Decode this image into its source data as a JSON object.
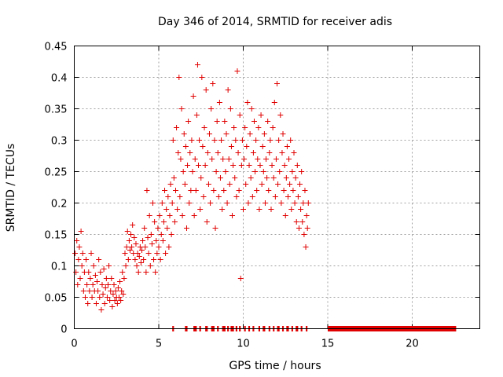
{
  "chart_data": {
    "type": "scatter",
    "title": "Day 346 of 2014, SRMTID for receiver adis",
    "xlabel": "GPS time / hours",
    "ylabel": "SRMTID / TECUs",
    "xlim": [
      0,
      24
    ],
    "ylim": [
      0,
      0.45
    ],
    "x_ticks": [
      0,
      5,
      10,
      15,
      20
    ],
    "x_tick_labels": [
      "0",
      "5",
      "10",
      "15",
      "20"
    ],
    "y_ticks": [
      0,
      0.05,
      0.1,
      0.15,
      0.2,
      0.25,
      0.3,
      0.35,
      0.4,
      0.45
    ],
    "y_tick_labels": [
      "0",
      "0.05",
      "0.1",
      "0.15",
      "0.2",
      "0.25",
      "0.3",
      "0.35",
      "0.4",
      "0.45"
    ],
    "grid": true,
    "marker": "+",
    "series": [
      {
        "name": "SRMTID",
        "color": "#e00000",
        "points": [
          [
            0.05,
            0.12
          ],
          [
            0.1,
            0.09
          ],
          [
            0.15,
            0.14
          ],
          [
            0.2,
            0.07
          ],
          [
            0.25,
            0.11
          ],
          [
            0.3,
            0.13
          ],
          [
            0.35,
            0.08
          ],
          [
            0.4,
            0.155
          ],
          [
            0.45,
            0.1
          ],
          [
            0.5,
            0.12
          ],
          [
            0.55,
            0.06
          ],
          [
            0.6,
            0.09
          ],
          [
            0.65,
            0.05
          ],
          [
            0.7,
            0.11
          ],
          [
            0.75,
            0.07
          ],
          [
            0.8,
            0.04
          ],
          [
            0.85,
            0.09
          ],
          [
            0.9,
            0.06
          ],
          [
            0.95,
            0.08
          ],
          [
            1.0,
            0.12
          ],
          [
            1.05,
            0.05
          ],
          [
            1.1,
            0.07
          ],
          [
            1.15,
            0.1
          ],
          [
            1.2,
            0.06
          ],
          [
            1.25,
            0.085
          ],
          [
            1.3,
            0.04
          ],
          [
            1.35,
            0.075
          ],
          [
            1.4,
            0.06
          ],
          [
            1.45,
            0.11
          ],
          [
            1.5,
            0.05
          ],
          [
            1.55,
            0.09
          ],
          [
            1.6,
            0.03
          ],
          [
            1.65,
            0.07
          ],
          [
            1.7,
            0.055
          ],
          [
            1.75,
            0.095
          ],
          [
            1.8,
            0.04
          ],
          [
            1.85,
            0.065
          ],
          [
            1.9,
            0.08
          ],
          [
            1.95,
            0.05
          ],
          [
            2.0,
            0.07
          ],
          [
            2.05,
            0.1
          ],
          [
            2.1,
            0.045
          ],
          [
            2.15,
            0.06
          ],
          [
            2.2,
            0.08
          ],
          [
            2.25,
            0.035
          ],
          [
            2.3,
            0.055
          ],
          [
            2.35,
            0.07
          ],
          [
            2.4,
            0.045
          ],
          [
            2.45,
            0.06
          ],
          [
            2.5,
            0.05
          ],
          [
            2.55,
            0.04
          ],
          [
            2.6,
            0.065
          ],
          [
            2.65,
            0.05
          ],
          [
            2.7,
            0.075
          ],
          [
            2.75,
            0.045
          ],
          [
            2.8,
            0.06
          ],
          [
            2.85,
            0.09
          ],
          [
            2.9,
            0.055
          ],
          [
            2.95,
            0.08
          ],
          [
            3.0,
            0.12
          ],
          [
            3.05,
            0.1
          ],
          [
            3.1,
            0.13
          ],
          [
            3.15,
            0.155
          ],
          [
            3.2,
            0.11
          ],
          [
            3.25,
            0.14
          ],
          [
            3.3,
            0.125
          ],
          [
            3.35,
            0.15
          ],
          [
            3.4,
            0.13
          ],
          [
            3.45,
            0.165
          ],
          [
            3.5,
            0.12
          ],
          [
            3.55,
            0.145
          ],
          [
            3.6,
            0.11
          ],
          [
            3.65,
            0.135
          ],
          [
            3.7,
            0.1
          ],
          [
            3.75,
            0.12
          ],
          [
            3.8,
            0.09
          ],
          [
            3.85,
            0.115
          ],
          [
            3.9,
            0.13
          ],
          [
            3.95,
            0.105
          ],
          [
            4.0,
            0.125
          ],
          [
            4.05,
            0.14
          ],
          [
            4.1,
            0.11
          ],
          [
            4.15,
            0.16
          ],
          [
            4.2,
            0.13
          ],
          [
            4.25,
            0.09
          ],
          [
            4.3,
            0.22
          ],
          [
            4.35,
            0.145
          ],
          [
            4.4,
            0.12
          ],
          [
            4.45,
            0.18
          ],
          [
            4.5,
            0.1
          ],
          [
            4.55,
            0.15
          ],
          [
            4.6,
            0.135
          ],
          [
            4.65,
            0.2
          ],
          [
            4.7,
            0.11
          ],
          [
            4.75,
            0.17
          ],
          [
            4.8,
            0.09
          ],
          [
            4.85,
            0.14
          ],
          [
            4.9,
            0.12
          ],
          [
            4.95,
            0.16
          ],
          [
            5.0,
            0.13
          ],
          [
            5.05,
            0.18
          ],
          [
            5.1,
            0.11
          ],
          [
            5.15,
            0.15
          ],
          [
            5.2,
            0.2
          ],
          [
            5.25,
            0.14
          ],
          [
            5.3,
            0.17
          ],
          [
            5.35,
            0.22
          ],
          [
            5.4,
            0.12
          ],
          [
            5.45,
            0.19
          ],
          [
            5.5,
            0.16
          ],
          [
            5.55,
            0.21
          ],
          [
            5.6,
            0.13
          ],
          [
            5.65,
            0.18
          ],
          [
            5.7,
            0.23
          ],
          [
            5.75,
            0.15
          ],
          [
            5.8,
            0.2
          ],
          [
            5.85,
            0.3
          ],
          [
            5.9,
            0.24
          ],
          [
            5.95,
            0.17
          ],
          [
            6.0,
            0.22
          ],
          [
            6.05,
            0.32
          ],
          [
            6.1,
            0.19
          ],
          [
            6.15,
            0.28
          ],
          [
            6.2,
            0.4
          ],
          [
            6.25,
            0.21
          ],
          [
            6.3,
            0.27
          ],
          [
            6.35,
            0.35
          ],
          [
            6.4,
            0.18
          ],
          [
            6.45,
            0.25
          ],
          [
            6.5,
            0.31
          ],
          [
            6.55,
            0.23
          ],
          [
            6.6,
            0.29
          ],
          [
            6.65,
            0.16
          ],
          [
            6.7,
            0.26
          ],
          [
            6.75,
            0.33
          ],
          [
            6.8,
            0.2
          ],
          [
            6.85,
            0.28
          ],
          [
            6.9,
            0.22
          ],
          [
            6.95,
            0.3
          ],
          [
            7.0,
            0.25
          ],
          [
            7.05,
            0.37
          ],
          [
            7.1,
            0.18
          ],
          [
            7.15,
            0.27
          ],
          [
            7.2,
            0.22
          ],
          [
            7.25,
            0.34
          ],
          [
            7.3,
            0.42
          ],
          [
            7.35,
            0.26
          ],
          [
            7.4,
            0.3
          ],
          [
            7.45,
            0.19
          ],
          [
            7.5,
            0.24
          ],
          [
            7.55,
            0.4
          ],
          [
            7.6,
            0.29
          ],
          [
            7.65,
            0.21
          ],
          [
            7.7,
            0.32
          ],
          [
            7.75,
            0.26
          ],
          [
            7.8,
            0.38
          ],
          [
            7.85,
            0.17
          ],
          [
            7.9,
            0.28
          ],
          [
            7.95,
            0.23
          ],
          [
            8.0,
            0.31
          ],
          [
            8.05,
            0.2
          ],
          [
            8.1,
            0.35
          ],
          [
            8.15,
            0.27
          ],
          [
            8.2,
            0.39
          ],
          [
            8.25,
            0.22
          ],
          [
            8.3,
            0.3
          ],
          [
            8.35,
            0.16
          ],
          [
            8.4,
            0.25
          ],
          [
            8.45,
            0.33
          ],
          [
            8.5,
            0.28
          ],
          [
            8.55,
            0.21
          ],
          [
            8.6,
            0.36
          ],
          [
            8.65,
            0.24
          ],
          [
            8.7,
            0.3
          ],
          [
            8.75,
            0.19
          ],
          [
            8.8,
            0.27
          ],
          [
            8.85,
            0.22
          ],
          [
            8.9,
            0.33
          ],
          [
            8.95,
            0.25
          ],
          [
            9.0,
            0.31
          ],
          [
            9.05,
            0.2
          ],
          [
            9.1,
            0.38
          ],
          [
            9.15,
            0.27
          ],
          [
            9.2,
            0.23
          ],
          [
            9.25,
            0.35
          ],
          [
            9.3,
            0.29
          ],
          [
            9.35,
            0.18
          ],
          [
            9.4,
            0.26
          ],
          [
            9.45,
            0.32
          ],
          [
            9.5,
            0.24
          ],
          [
            9.55,
            0.3
          ],
          [
            9.6,
            0.21
          ],
          [
            9.65,
            0.41
          ],
          [
            9.7,
            0.28
          ],
          [
            9.75,
            0.22
          ],
          [
            9.8,
            0.34
          ],
          [
            9.85,
            0.08
          ],
          [
            9.9,
            0.26
          ],
          [
            9.95,
            0.3
          ],
          [
            10.0,
            0.19
          ],
          [
            10.05,
            0.27
          ],
          [
            10.1,
            0.32
          ],
          [
            10.15,
            0.23
          ],
          [
            10.2,
            0.29
          ],
          [
            10.25,
            0.36
          ],
          [
            10.3,
            0.2
          ],
          [
            10.35,
            0.26
          ],
          [
            10.4,
            0.31
          ],
          [
            10.45,
            0.24
          ],
          [
            10.5,
            0.35
          ],
          [
            10.55,
            0.21
          ],
          [
            10.6,
            0.28
          ],
          [
            10.65,
            0.33
          ],
          [
            10.7,
            0.25
          ],
          [
            10.75,
            0.3
          ],
          [
            10.8,
            0.22
          ],
          [
            10.85,
            0.27
          ],
          [
            10.9,
            0.32
          ],
          [
            10.95,
            0.19
          ],
          [
            11.0,
            0.26
          ],
          [
            11.05,
            0.34
          ],
          [
            11.1,
            0.23
          ],
          [
            11.15,
            0.29
          ],
          [
            11.2,
            0.25
          ],
          [
            11.25,
            0.31
          ],
          [
            11.3,
            0.2
          ],
          [
            11.35,
            0.27
          ],
          [
            11.4,
            0.24
          ],
          [
            11.45,
            0.33
          ],
          [
            11.5,
            0.22
          ],
          [
            11.55,
            0.28
          ],
          [
            11.6,
            0.3
          ],
          [
            11.65,
            0.19
          ],
          [
            11.7,
            0.26
          ],
          [
            11.75,
            0.32
          ],
          [
            11.8,
            0.24
          ],
          [
            11.85,
            0.36
          ],
          [
            11.9,
            0.21
          ],
          [
            11.95,
            0.27
          ],
          [
            12.0,
            0.39
          ],
          [
            12.05,
            0.23
          ],
          [
            12.1,
            0.3
          ],
          [
            12.15,
            0.25
          ],
          [
            12.2,
            0.34
          ],
          [
            12.25,
            0.2
          ],
          [
            12.3,
            0.28
          ],
          [
            12.35,
            0.31
          ],
          [
            12.4,
            0.22
          ],
          [
            12.45,
            0.26
          ],
          [
            12.5,
            0.18
          ],
          [
            12.55,
            0.24
          ],
          [
            12.6,
            0.29
          ],
          [
            12.65,
            0.21
          ],
          [
            12.7,
            0.27
          ],
          [
            12.75,
            0.23
          ],
          [
            12.8,
            0.3
          ],
          [
            12.85,
            0.19
          ],
          [
            12.9,
            0.25
          ],
          [
            12.95,
            0.22
          ],
          [
            13.0,
            0.28
          ],
          [
            13.05,
            0.2
          ],
          [
            13.1,
            0.24
          ],
          [
            13.15,
            0.17
          ],
          [
            13.2,
            0.26
          ],
          [
            13.25,
            0.21
          ],
          [
            13.3,
            0.16
          ],
          [
            13.35,
            0.23
          ],
          [
            13.4,
            0.19
          ],
          [
            13.45,
            0.25
          ],
          [
            13.5,
            0.17
          ],
          [
            13.55,
            0.2
          ],
          [
            13.6,
            0.15
          ],
          [
            13.65,
            0.22
          ],
          [
            13.7,
            0.13
          ],
          [
            13.75,
            0.18
          ],
          [
            13.8,
            0.16
          ],
          [
            13.85,
            0.2
          ]
        ]
      }
    ],
    "zero_band": {
      "y": 0,
      "segments": [
        [
          5.8,
          5.9
        ],
        [
          6.55,
          6.7
        ],
        [
          7.05,
          7.25
        ],
        [
          7.4,
          7.5
        ],
        [
          7.75,
          7.9
        ],
        [
          8.1,
          8.3
        ],
        [
          8.45,
          8.55
        ],
        [
          8.75,
          8.95
        ],
        [
          9.05,
          9.15
        ],
        [
          9.25,
          9.45
        ],
        [
          9.55,
          9.65
        ],
        [
          9.75,
          9.85
        ],
        [
          10.05,
          10.15
        ],
        [
          10.3,
          10.4
        ],
        [
          10.55,
          10.65
        ],
        [
          10.9,
          11.0
        ],
        [
          11.15,
          11.3
        ],
        [
          11.5,
          11.6
        ],
        [
          11.75,
          11.85
        ],
        [
          12.0,
          12.15
        ],
        [
          12.3,
          12.4
        ],
        [
          12.55,
          12.7
        ],
        [
          12.85,
          12.95
        ],
        [
          13.1,
          13.25
        ],
        [
          13.4,
          13.5
        ],
        [
          13.7,
          13.8
        ],
        [
          15.0,
          22.6
        ]
      ]
    }
  }
}
